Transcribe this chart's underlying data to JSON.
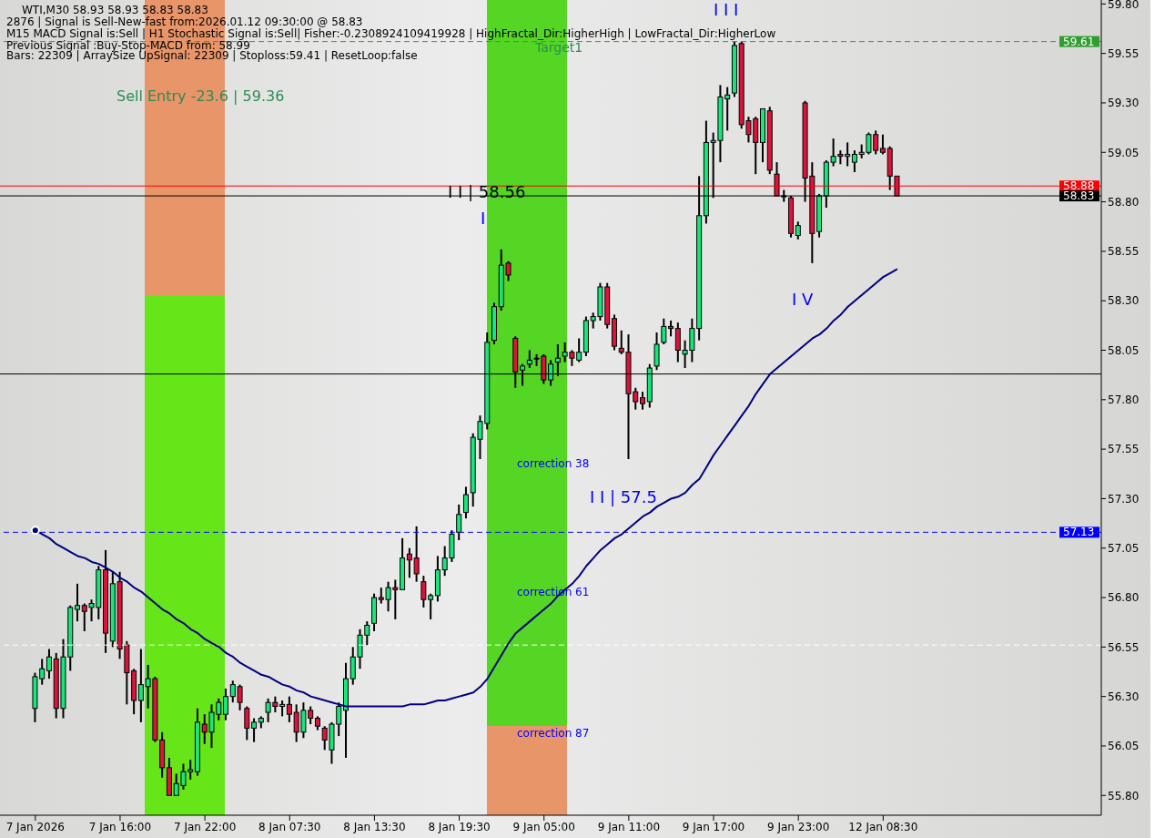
{
  "chart_data": {
    "type": "candlestick",
    "title": "WTI,M30  58.93 58.93 58.83 58.83",
    "categories": [
      "7 Jan 2026",
      null,
      null,
      null,
      null,
      null,
      null,
      null,
      null,
      null,
      null,
      null,
      "7 Jan 16:00",
      null,
      null,
      null,
      null,
      null,
      null,
      null,
      null,
      null,
      null,
      null,
      "7 Jan 22:00",
      null,
      null,
      null,
      null,
      null,
      null,
      null,
      null,
      null,
      null,
      null,
      "8 Jan 07:30",
      null,
      null,
      null,
      null,
      null,
      null,
      null,
      null,
      null,
      null,
      null,
      "8 Jan 13:30",
      null,
      null,
      null,
      null,
      null,
      null,
      null,
      null,
      null,
      null,
      null,
      "8 Jan 19:30",
      null,
      null,
      null,
      null,
      null,
      null,
      null,
      null,
      null,
      null,
      null,
      "9 Jan 05:00",
      null,
      null,
      null,
      null,
      null,
      null,
      null,
      null,
      null,
      null,
      null,
      "9 Jan 11:00",
      null,
      null,
      null,
      null,
      null,
      null,
      null,
      null,
      null,
      null,
      null,
      "9 Jan 17:00",
      null,
      null,
      null,
      null,
      null,
      null,
      null,
      null,
      null,
      null,
      null,
      "9 Jan 23:00",
      null,
      null,
      null,
      null,
      null,
      null,
      null,
      null,
      null,
      null,
      null,
      "12 Jan 08:30",
      null,
      null
    ],
    "ohlc": [
      [
        56.24,
        56.42,
        56.17,
        56.4
      ],
      [
        56.39,
        56.49,
        56.36,
        56.44
      ],
      [
        56.43,
        56.54,
        56.39,
        56.5
      ],
      [
        56.49,
        56.52,
        56.19,
        56.24
      ],
      [
        56.24,
        56.59,
        56.19,
        56.5
      ],
      [
        56.5,
        56.76,
        56.43,
        56.75
      ],
      [
        56.74,
        56.87,
        56.68,
        56.76
      ],
      [
        56.76,
        56.77,
        56.63,
        56.73
      ],
      [
        56.75,
        56.79,
        56.68,
        56.77
      ],
      [
        56.75,
        56.96,
        56.69,
        56.94
      ],
      [
        56.94,
        57.04,
        56.52,
        56.62
      ],
      [
        56.58,
        56.93,
        56.55,
        56.87
      ],
      [
        56.88,
        56.93,
        56.49,
        56.54
      ],
      [
        56.56,
        56.58,
        56.26,
        56.42
      ],
      [
        56.43,
        56.44,
        56.21,
        56.28
      ],
      [
        56.28,
        56.54,
        56.17,
        56.36
      ],
      [
        56.35,
        56.46,
        56.24,
        56.39
      ],
      [
        56.39,
        56.4,
        56.07,
        56.08
      ],
      [
        56.08,
        56.12,
        55.89,
        55.94
      ],
      [
        55.94,
        55.99,
        55.8,
        55.8
      ],
      [
        55.8,
        55.91,
        55.8,
        55.86
      ],
      [
        55.85,
        55.96,
        55.83,
        55.92
      ],
      [
        55.92,
        55.98,
        55.88,
        55.93
      ],
      [
        55.92,
        56.24,
        55.9,
        56.17
      ],
      [
        56.16,
        56.21,
        56.06,
        56.12
      ],
      [
        56.12,
        56.26,
        56.04,
        56.22
      ],
      [
        56.21,
        56.29,
        56.18,
        56.27
      ],
      [
        56.21,
        56.34,
        56.18,
        56.3
      ],
      [
        56.3,
        56.38,
        56.27,
        56.36
      ],
      [
        56.35,
        56.36,
        56.23,
        56.27
      ],
      [
        56.24,
        56.25,
        56.08,
        56.14
      ],
      [
        56.14,
        56.19,
        56.07,
        56.17
      ],
      [
        56.17,
        56.2,
        56.14,
        56.19
      ],
      [
        56.22,
        56.29,
        56.17,
        56.27
      ],
      [
        56.27,
        56.3,
        56.22,
        56.25
      ],
      [
        56.25,
        56.28,
        56.2,
        56.26
      ],
      [
        56.26,
        56.3,
        56.17,
        56.21
      ],
      [
        56.22,
        56.26,
        56.07,
        56.12
      ],
      [
        56.12,
        56.27,
        56.09,
        56.23
      ],
      [
        56.23,
        56.25,
        56.16,
        56.19
      ],
      [
        56.19,
        56.2,
        56.13,
        56.15
      ],
      [
        56.14,
        56.15,
        56.03,
        56.08
      ],
      [
        56.03,
        56.17,
        55.96,
        56.16
      ],
      [
        56.16,
        56.27,
        56.1,
        56.25
      ],
      [
        56.23,
        56.47,
        55.99,
        56.39
      ],
      [
        56.39,
        56.55,
        56.36,
        56.5
      ],
      [
        56.5,
        56.64,
        56.44,
        56.61
      ],
      [
        56.61,
        56.68,
        56.56,
        56.66
      ],
      [
        56.67,
        56.82,
        56.63,
        56.8
      ],
      [
        56.8,
        56.85,
        56.77,
        56.79
      ],
      [
        56.79,
        56.88,
        56.73,
        56.85
      ],
      [
        56.85,
        56.89,
        56.69,
        56.84
      ],
      [
        56.84,
        57.1,
        56.84,
        57.0
      ],
      [
        57.02,
        57.05,
        56.9,
        56.99
      ],
      [
        57.0,
        57.16,
        56.88,
        56.92
      ],
      [
        56.88,
        56.91,
        56.75,
        56.79
      ],
      [
        56.79,
        56.82,
        56.69,
        56.81
      ],
      [
        56.81,
        57.01,
        56.78,
        56.94
      ],
      [
        56.94,
        57.06,
        56.91,
        57.0
      ],
      [
        57.0,
        57.14,
        56.98,
        57.12
      ],
      [
        57.13,
        57.27,
        57.09,
        57.22
      ],
      [
        57.23,
        57.36,
        57.2,
        57.32
      ],
      [
        57.33,
        57.63,
        57.26,
        57.61
      ],
      [
        57.6,
        57.72,
        57.5,
        57.69
      ],
      [
        57.68,
        58.14,
        57.65,
        58.09
      ],
      [
        58.1,
        58.29,
        58.08,
        58.27
      ],
      [
        58.27,
        58.56,
        58.25,
        58.48
      ],
      [
        58.49,
        58.5,
        58.4,
        58.43
      ],
      [
        58.11,
        58.12,
        57.86,
        57.94
      ],
      [
        57.95,
        57.98,
        57.87,
        57.97
      ],
      [
        57.98,
        58.05,
        57.96,
        58.0
      ],
      [
        58.01,
        58.03,
        57.97,
        58.01
      ],
      [
        58.02,
        58.03,
        57.88,
        57.9
      ],
      [
        57.9,
        58.0,
        57.87,
        57.98
      ],
      [
        57.99,
        58.08,
        57.92,
        58.01
      ],
      [
        58.02,
        58.09,
        57.99,
        58.04
      ],
      [
        58.04,
        58.05,
        57.97,
        58.01
      ],
      [
        58.0,
        58.11,
        57.99,
        58.04
      ],
      [
        58.04,
        58.22,
        58.02,
        58.2
      ],
      [
        58.2,
        58.24,
        58.16,
        58.22
      ],
      [
        58.22,
        58.39,
        58.2,
        58.37
      ],
      [
        58.37,
        58.39,
        58.16,
        58.18
      ],
      [
        58.21,
        58.23,
        58.05,
        58.07
      ],
      [
        58.06,
        58.15,
        58.03,
        58.04
      ],
      [
        58.04,
        58.13,
        57.5,
        57.83
      ],
      [
        57.84,
        57.86,
        57.75,
        57.79
      ],
      [
        57.81,
        57.84,
        57.75,
        57.78
      ],
      [
        57.79,
        57.98,
        57.76,
        57.96
      ],
      [
        57.97,
        58.14,
        57.95,
        58.08
      ],
      [
        58.09,
        58.21,
        58.08,
        58.17
      ],
      [
        58.17,
        58.2,
        58.12,
        58.16
      ],
      [
        58.16,
        58.19,
        57.99,
        58.05
      ],
      [
        58.03,
        58.1,
        57.96,
        58.05
      ],
      [
        58.05,
        58.21,
        57.99,
        58.16
      ],
      [
        58.16,
        58.93,
        58.1,
        58.73
      ],
      [
        58.73,
        59.21,
        58.69,
        59.1
      ],
      [
        59.1,
        59.15,
        58.82,
        59.11
      ],
      [
        59.11,
        59.39,
        59.0,
        59.33
      ],
      [
        59.32,
        59.38,
        59.16,
        59.34
      ],
      [
        59.35,
        59.61,
        59.33,
        59.59
      ],
      [
        59.6,
        59.61,
        59.17,
        59.19
      ],
      [
        59.21,
        59.23,
        59.1,
        59.14
      ],
      [
        59.22,
        59.23,
        58.94,
        59.1
      ],
      [
        59.1,
        59.27,
        59.0,
        59.27
      ],
      [
        59.26,
        59.28,
        58.94,
        58.96
      ],
      [
        58.94,
        59.0,
        58.83,
        58.83
      ],
      [
        58.83,
        58.86,
        58.8,
        58.83
      ],
      [
        58.82,
        58.83,
        58.62,
        58.64
      ],
      [
        58.63,
        58.7,
        58.61,
        58.68
      ],
      [
        59.3,
        59.31,
        58.8,
        58.92
      ],
      [
        58.93,
        59.0,
        58.49,
        58.64
      ],
      [
        58.65,
        58.84,
        58.62,
        58.83
      ],
      [
        58.83,
        59.01,
        58.77,
        59.0
      ],
      [
        59.0,
        59.12,
        58.98,
        59.03
      ],
      [
        59.04,
        59.06,
        58.99,
        59.03
      ],
      [
        59.03,
        59.1,
        58.98,
        59.04
      ],
      [
        59.0,
        59.06,
        58.95,
        59.04
      ],
      [
        59.04,
        59.09,
        59.02,
        59.05
      ],
      [
        59.05,
        59.15,
        59.04,
        59.14
      ],
      [
        59.14,
        59.16,
        59.04,
        59.06
      ],
      [
        59.07,
        59.14,
        59.04,
        59.05
      ],
      [
        59.07,
        59.08,
        58.86,
        58.93
      ],
      [
        58.93,
        58.93,
        58.83,
        58.83
      ]
    ],
    "series": [
      {
        "type": "line",
        "color": "#00007f",
        "values": [
          57.14,
          57.12,
          57.1,
          57.07,
          57.05,
          57.03,
          57.01,
          57.0,
          56.98,
          56.97,
          56.95,
          56.93,
          56.9,
          56.88,
          56.85,
          56.83,
          56.8,
          56.77,
          56.74,
          56.72,
          56.69,
          56.67,
          56.64,
          56.62,
          56.59,
          56.57,
          56.55,
          56.52,
          56.5,
          56.47,
          56.45,
          56.43,
          56.41,
          56.4,
          56.38,
          56.36,
          56.35,
          56.33,
          56.32,
          56.3,
          56.29,
          56.28,
          56.27,
          56.26,
          56.25,
          56.25,
          56.25,
          56.25,
          56.25,
          56.25,
          56.25,
          56.25,
          56.25,
          56.26,
          56.26,
          56.26,
          56.27,
          56.28,
          56.28,
          56.29,
          56.3,
          56.31,
          56.32,
          56.35,
          56.39,
          56.45,
          56.51,
          56.57,
          56.62,
          56.65,
          56.68,
          56.71,
          56.74,
          56.77,
          56.81,
          56.84,
          56.87,
          56.91,
          56.96,
          57.0,
          57.04,
          57.07,
          57.1,
          57.12,
          57.15,
          57.18,
          57.21,
          57.23,
          57.26,
          57.28,
          57.3,
          57.31,
          57.33,
          57.37,
          57.4,
          57.46,
          57.52,
          57.57,
          57.62,
          57.67,
          57.72,
          57.77,
          57.83,
          57.88,
          57.93,
          57.96,
          57.99,
          58.02,
          58.05,
          58.08,
          58.11,
          58.13,
          58.16,
          58.2,
          58.23,
          58.27,
          58.3,
          58.33,
          58.36,
          58.39,
          58.42,
          58.44,
          58.46
        ]
      }
    ],
    "ylim": [
      55.7,
      59.82
    ],
    "yticks": [
      {
        "value": 55.8,
        "label": "55.80"
      },
      56.05,
      {
        "value": 56.3,
        "label": "56.30"
      },
      56.55,
      {
        "value": 56.8,
        "label": "56.80"
      },
      57.05,
      {
        "value": 57.3,
        "label": "57.30"
      },
      57.55,
      {
        "value": 57.8,
        "label": "57.80"
      },
      58.05,
      {
        "value": 58.3,
        "label": "58.30"
      },
      58.55,
      {
        "value": 58.8,
        "label": "58.80"
      },
      59.05,
      {
        "value": 59.3,
        "label": "59.30"
      },
      59.55,
      {
        "value": 59.8,
        "label": "59.80"
      }
    ],
    "ref_lines": [
      {
        "axis": "y",
        "value": 59.61,
        "label": "59.61",
        "color": "#2e9e2e",
        "line_style": "dashed"
      },
      {
        "axis": "y",
        "value": 58.88,
        "label": "58.88",
        "color": "#ff0000",
        "line_style": "solid"
      },
      {
        "axis": "y",
        "value": 58.83,
        "label": "58.83",
        "color": "#000000",
        "line_style": "solid"
      },
      {
        "axis": "y",
        "value": 57.13,
        "label": "57.13",
        "color": "#0000ff",
        "line_style": "dashed"
      },
      {
        "axis": "y",
        "value": 57.93,
        "color": "#000000",
        "line_style": "solid"
      },
      {
        "axis": "y",
        "value": 56.56,
        "color": "#ffffff",
        "line_style": "dashed"
      }
    ],
    "annotations": [
      "2876 | Signal is Sell-New-fast from:2026.01.12 09:30:00 @ 58.83",
      "M15 MACD Signal is:Sell | H1 Stochastic Signal is:Sell| Fisher:-0.2308924109419928 | HighFractal_Dir:HigherHigh | LowFractal_Dir:HigherLow",
      "Previous Signal :Buy-Stop-MACD from: 58.99",
      "Bars: 22309 | ArraySize UpSignal: 22309 | Stoploss:59.41 | ResetLoop:false",
      "Sell Entry -23.6 | 59.36",
      "Target1",
      "I I | 58.56",
      "I",
      "correction 38",
      "correction 61",
      "correction 87",
      "I I | 57.5",
      "I I I",
      "I V"
    ]
  }
}
